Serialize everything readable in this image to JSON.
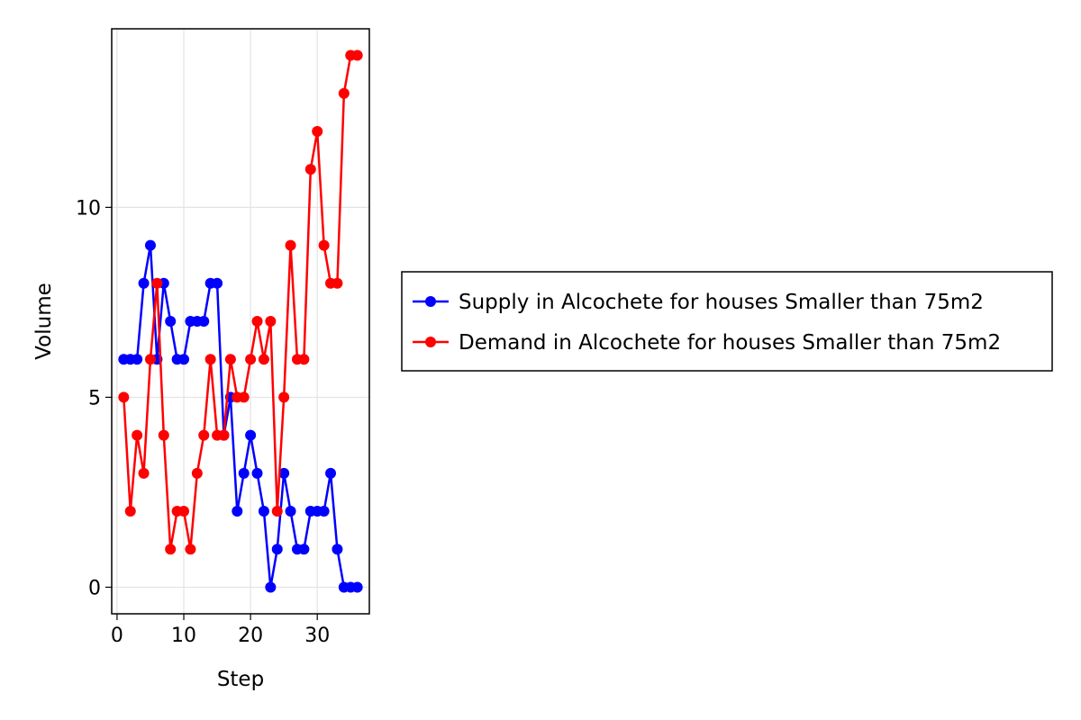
{
  "chart_data": {
    "type": "line",
    "title": "",
    "xlabel": "Step",
    "ylabel": "Volume",
    "xlim": [
      -0.8,
      37.8
    ],
    "ylim": [
      -0.7,
      14.7
    ],
    "xticks": [
      0,
      10,
      20,
      30
    ],
    "yticks": [
      0,
      5,
      10
    ],
    "grid": true,
    "legend_position": "right",
    "x": [
      1,
      2,
      3,
      4,
      5,
      6,
      7,
      8,
      9,
      10,
      11,
      12,
      13,
      14,
      15,
      16,
      17,
      18,
      19,
      20,
      21,
      22,
      23,
      24,
      25,
      26,
      27,
      28,
      29,
      30,
      31,
      32,
      33,
      34,
      35,
      36
    ],
    "series": [
      {
        "name": "Supply in Alcochete for houses Smaller than 75m2",
        "color": "#0000ff",
        "values": [
          6,
          6,
          6,
          8,
          9,
          6,
          8,
          7,
          6,
          6,
          7,
          7,
          7,
          8,
          8,
          4,
          5,
          2,
          3,
          4,
          3,
          2,
          0,
          1,
          3,
          2,
          1,
          1,
          2,
          2,
          2,
          3,
          1,
          0,
          0,
          0
        ]
      },
      {
        "name": "Demand in Alcochete for houses Smaller than 75m2",
        "color": "#ff0000",
        "values": [
          5,
          2,
          4,
          3,
          6,
          8,
          4,
          1,
          2,
          2,
          1,
          3,
          4,
          6,
          4,
          4,
          6,
          5,
          5,
          6,
          7,
          6,
          7,
          2,
          5,
          9,
          6,
          6,
          11,
          12,
          9,
          8,
          8,
          13,
          14,
          14
        ]
      }
    ]
  }
}
